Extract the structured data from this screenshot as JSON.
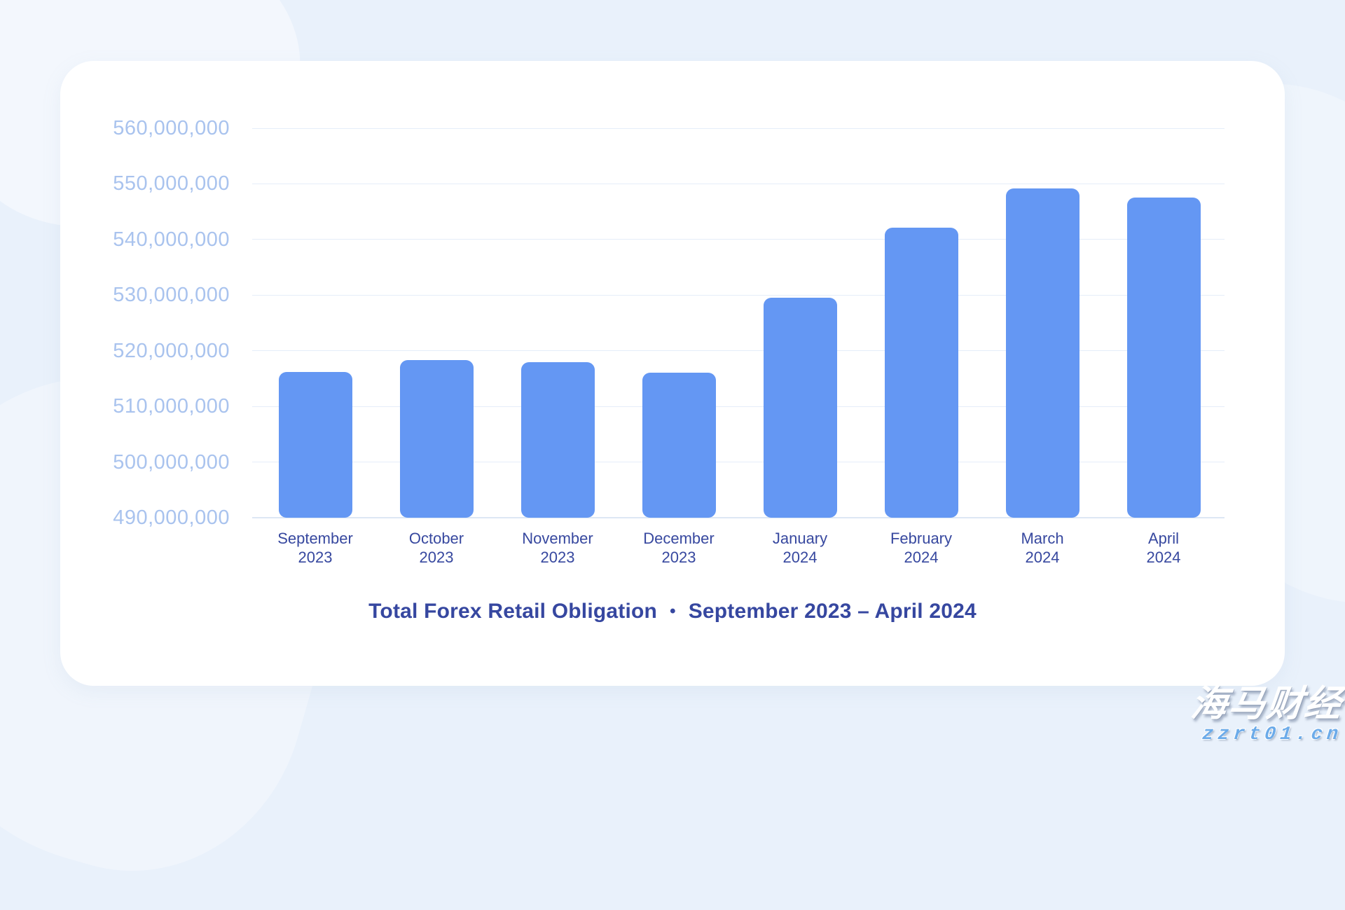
{
  "page": {
    "background_color": "#e9f1fb",
    "watermark": {
      "brand": "海马财经",
      "url": "zzrt01.cn",
      "url_color": "#6cabe9"
    }
  },
  "card": {
    "background_color": "#ffffff",
    "corner_radius": 48
  },
  "caption": {
    "title": "Total Forex Retail Obligation",
    "separator": "•",
    "period": "September 2023 – April 2024"
  },
  "chart_data": {
    "type": "bar",
    "title": "Total Forex Retail Obligation",
    "subtitle": "September 2023 – April 2024",
    "categories": [
      [
        "September",
        "2023"
      ],
      [
        "October",
        "2023"
      ],
      [
        "November",
        "2023"
      ],
      [
        "December",
        "2023"
      ],
      [
        "January",
        "2024"
      ],
      [
        "February",
        "2024"
      ],
      [
        "March",
        "2024"
      ],
      [
        "April",
        "2024"
      ]
    ],
    "values": [
      516200000,
      518300000,
      518000000,
      516100000,
      529500000,
      542100000,
      549200000,
      547500000
    ],
    "ylim": [
      490000000,
      560000000
    ],
    "yticks": [
      {
        "value": 490000000,
        "label": "490,000,000"
      },
      {
        "value": 500000000,
        "label": "500,000,000"
      },
      {
        "value": 510000000,
        "label": "510,000,000"
      },
      {
        "value": 520000000,
        "label": "520,000,000"
      },
      {
        "value": 530000000,
        "label": "530,000,000"
      },
      {
        "value": 540000000,
        "label": "540,000,000"
      },
      {
        "value": 550000000,
        "label": "550,000,000"
      },
      {
        "value": 560000000,
        "label": "560,000,000"
      }
    ],
    "bar_color": "#6497f3",
    "grid": true,
    "legend_position": "none",
    "xlabel": "",
    "ylabel": ""
  }
}
